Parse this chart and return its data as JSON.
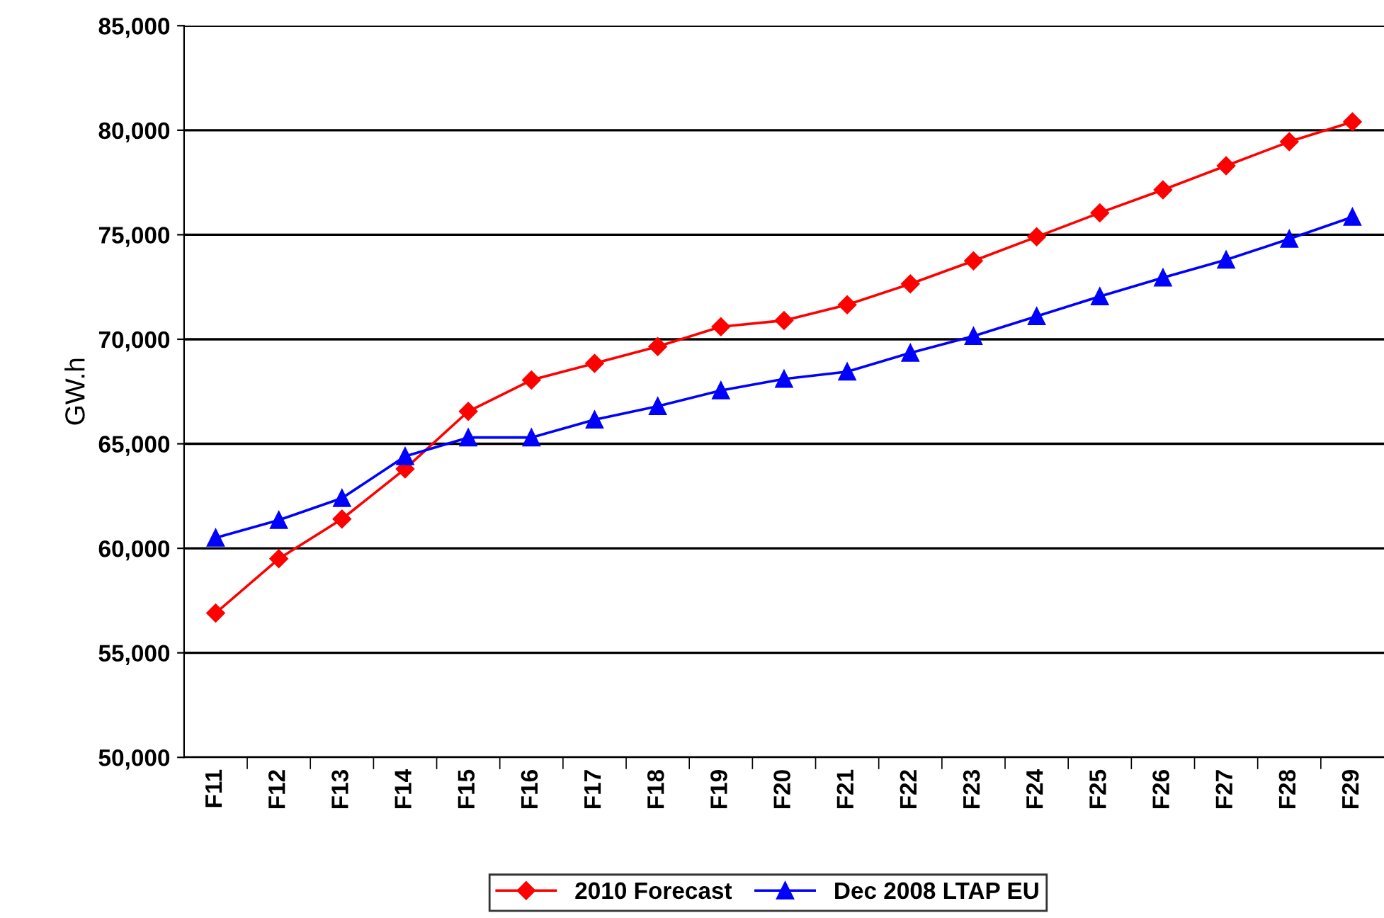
{
  "chart_data": {
    "type": "line",
    "ylabel": "GW.h",
    "categories": [
      "F11",
      "F12",
      "F13",
      "F14",
      "F15",
      "F16",
      "F17",
      "F18",
      "F19",
      "F20",
      "F21",
      "F22",
      "F23",
      "F24",
      "F25",
      "F26",
      "F27",
      "F28",
      "F29"
    ],
    "series": [
      {
        "name": "2010 Forecast",
        "color": "#ff0000",
        "marker": "diamond",
        "values": [
          56900,
          59500,
          61400,
          63800,
          66550,
          68050,
          68850,
          69650,
          70600,
          70900,
          71650,
          72650,
          73750,
          74900,
          76050,
          77150,
          78300,
          79450,
          80400
        ]
      },
      {
        "name": "Dec 2008 LTAP EU",
        "color": "#0000ff",
        "marker": "triangle",
        "values": [
          60500,
          61350,
          62400,
          64400,
          65300,
          65300,
          66150,
          66800,
          67550,
          68100,
          68450,
          69350,
          70150,
          71100,
          72050,
          72950,
          73800,
          74800,
          75850
        ]
      }
    ],
    "ylim": [
      50000,
      85000
    ],
    "yticks": [
      {
        "value": 50000,
        "label": "50,000"
      },
      {
        "value": 55000,
        "label": "55,000"
      },
      {
        "value": 60000,
        "label": "60,000"
      },
      {
        "value": 65000,
        "label": "65,000"
      },
      {
        "value": 70000,
        "label": "70,000"
      },
      {
        "value": 75000,
        "label": "75,000"
      },
      {
        "value": 80000,
        "label": "80,000"
      },
      {
        "value": 85000,
        "label": "85,000"
      }
    ],
    "grid": "y",
    "legend": "bottom",
    "line_style": "solid"
  }
}
